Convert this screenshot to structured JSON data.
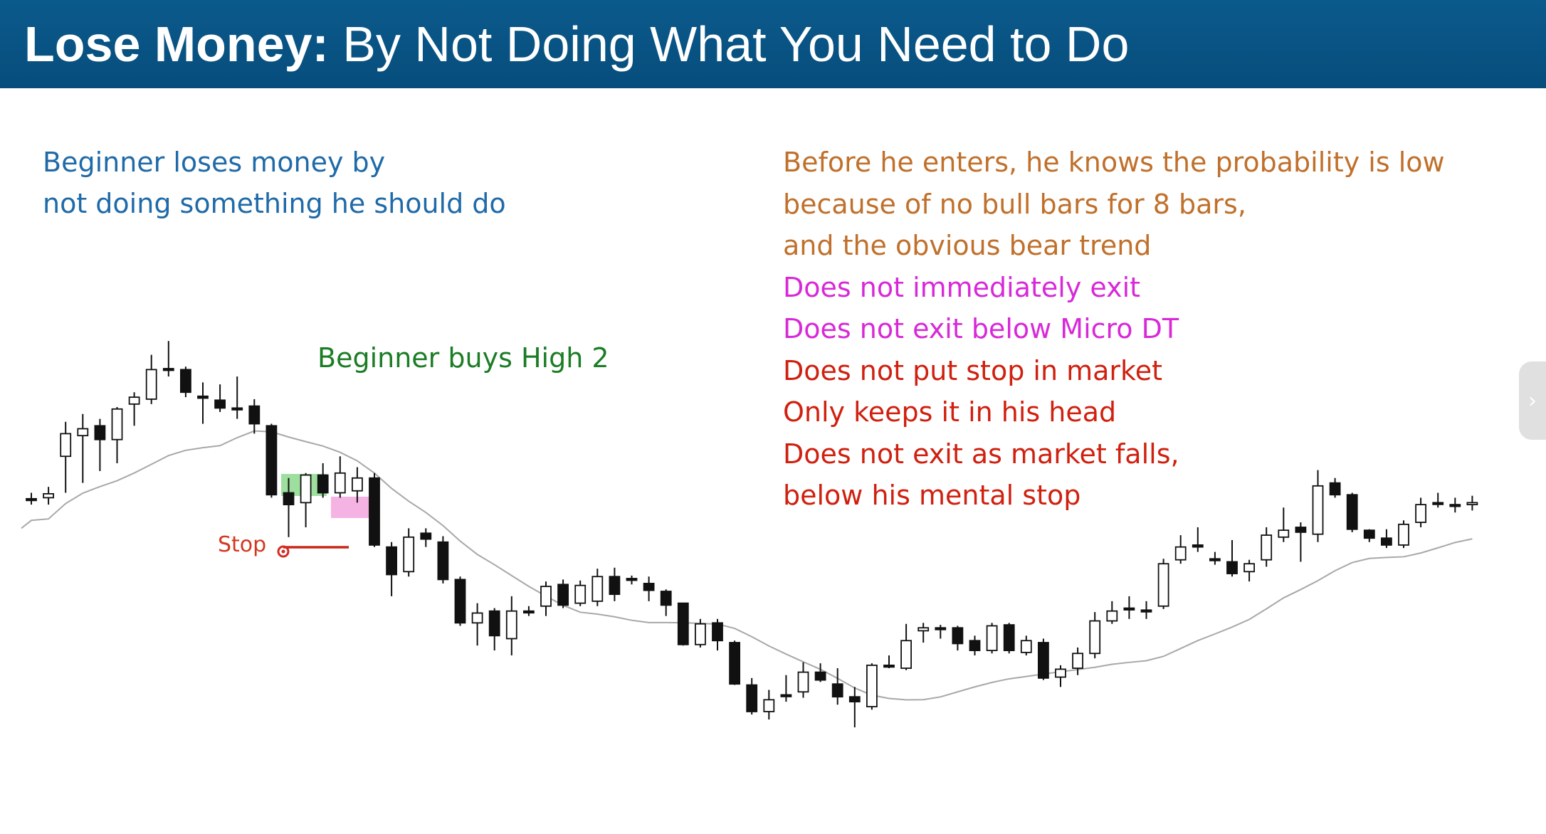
{
  "slide": {
    "title_bold": "Lose Money:",
    "title_rest": " By Not Doing What You Need to Do"
  },
  "notes": {
    "left": [
      "Beginner loses money by",
      "not doing something he should do"
    ],
    "buy": "Beginner buys High 2",
    "stop": "Stop",
    "right": [
      {
        "text": "Before he enters, he knows the probability is low",
        "color": "orange"
      },
      {
        "text": "because of no bull bars for 8 bars,",
        "color": "orange"
      },
      {
        "text": "and the obvious bear trend",
        "color": "orange"
      },
      {
        "text": "Does not immediately exit",
        "color": "magenta"
      },
      {
        "text": "Does not exit below Micro DT",
        "color": "magenta"
      },
      {
        "text": "Does not put stop in market",
        "color": "red"
      },
      {
        "text": "Only keeps it in his head",
        "color": "red"
      },
      {
        "text": "Does not exit as market falls,",
        "color": "red"
      },
      {
        "text": "below his mental stop",
        "color": "red"
      }
    ]
  },
  "colors": {
    "header_bg": "#064d7c",
    "orange": "#c0702b",
    "magenta": "#d829d8",
    "red": "#d0200f",
    "left_blue": "#1f6aa8",
    "green_text": "#1b7d25",
    "entry_highlight": "#7dd37d",
    "exit_highlight": "#f08ad4",
    "stop_line": "#c8281a",
    "moving_average": "#a8a8a8"
  },
  "side_tab_icon": "chevron-right-icon",
  "chart_data": {
    "type": "candlestick",
    "overlay": "moving average",
    "grid": false,
    "annotations": [
      "Beginner buys High 2",
      "Stop"
    ],
    "bars": [
      {
        "o": 506,
        "h": 500,
        "l": 512,
        "c": 506
      },
      {
        "o": 505,
        "h": 494,
        "l": 512,
        "c": 501
      },
      {
        "o": 463,
        "h": 428,
        "l": 500,
        "c": 440
      },
      {
        "o": 442,
        "h": 420,
        "l": 490,
        "c": 435
      },
      {
        "o": 432,
        "h": 425,
        "l": 478,
        "c": 446
      },
      {
        "o": 446,
        "h": 413,
        "l": 470,
        "c": 415
      },
      {
        "o": 410,
        "h": 398,
        "l": 432,
        "c": 403
      },
      {
        "o": 405,
        "h": 360,
        "l": 410,
        "c": 375
      },
      {
        "o": 374,
        "h": 346,
        "l": 382,
        "c": 374
      },
      {
        "o": 375,
        "h": 372,
        "l": 403,
        "c": 398
      },
      {
        "o": 402,
        "h": 388,
        "l": 430,
        "c": 404
      },
      {
        "o": 406,
        "h": 390,
        "l": 418,
        "c": 414
      },
      {
        "o": 414,
        "h": 382,
        "l": 425,
        "c": 414
      },
      {
        "o": 412,
        "h": 405,
        "l": 440,
        "c": 430
      },
      {
        "o": 432,
        "h": 430,
        "l": 505,
        "c": 502
      },
      {
        "o": 500,
        "h": 485,
        "l": 545,
        "c": 512
      },
      {
        "o": 510,
        "h": 480,
        "l": 535,
        "c": 482
      },
      {
        "o": 482,
        "h": 470,
        "l": 505,
        "c": 500
      },
      {
        "o": 500,
        "h": 463,
        "l": 505,
        "c": 480
      },
      {
        "o": 498,
        "h": 474,
        "l": 510,
        "c": 485
      },
      {
        "o": 485,
        "h": 480,
        "l": 555,
        "c": 553
      },
      {
        "o": 555,
        "h": 550,
        "l": 605,
        "c": 583
      },
      {
        "o": 580,
        "h": 536,
        "l": 585,
        "c": 545
      },
      {
        "o": 541,
        "h": 536,
        "l": 555,
        "c": 547
      },
      {
        "o": 550,
        "h": 544,
        "l": 592,
        "c": 588
      },
      {
        "o": 588,
        "h": 585,
        "l": 635,
        "c": 632
      },
      {
        "o": 632,
        "h": 612,
        "l": 655,
        "c": 622
      },
      {
        "o": 620,
        "h": 617,
        "l": 660,
        "c": 645
      },
      {
        "o": 648,
        "h": 605,
        "l": 665,
        "c": 620
      },
      {
        "o": 620,
        "h": 615,
        "l": 625,
        "c": 620
      },
      {
        "o": 615,
        "h": 590,
        "l": 625,
        "c": 595
      },
      {
        "o": 593,
        "h": 588,
        "l": 617,
        "c": 614
      },
      {
        "o": 612,
        "h": 589,
        "l": 615,
        "c": 594
      },
      {
        "o": 610,
        "h": 577,
        "l": 615,
        "c": 585
      },
      {
        "o": 585,
        "h": 576,
        "l": 610,
        "c": 603
      },
      {
        "o": 587,
        "h": 584,
        "l": 593,
        "c": 587
      },
      {
        "o": 592,
        "h": 585,
        "l": 610,
        "c": 599
      },
      {
        "o": 600,
        "h": 598,
        "l": 625,
        "c": 614
      },
      {
        "o": 612,
        "h": 612,
        "l": 655,
        "c": 654
      },
      {
        "o": 654,
        "h": 628,
        "l": 657,
        "c": 633
      },
      {
        "o": 632,
        "h": 628,
        "l": 660,
        "c": 650
      },
      {
        "o": 652,
        "h": 650,
        "l": 695,
        "c": 694
      },
      {
        "o": 695,
        "h": 688,
        "l": 725,
        "c": 722
      },
      {
        "o": 722,
        "h": 700,
        "l": 730,
        "c": 710
      },
      {
        "o": 705,
        "h": 685,
        "l": 712,
        "c": 705
      },
      {
        "o": 702,
        "h": 672,
        "l": 708,
        "c": 682
      },
      {
        "o": 682,
        "h": 673,
        "l": 692,
        "c": 690
      },
      {
        "o": 694,
        "h": 678,
        "l": 715,
        "c": 707
      },
      {
        "o": 707,
        "h": 697,
        "l": 738,
        "c": 712
      },
      {
        "o": 717,
        "h": 673,
        "l": 720,
        "c": 675
      },
      {
        "o": 675,
        "h": 665,
        "l": 678,
        "c": 675
      },
      {
        "o": 678,
        "h": 633,
        "l": 680,
        "c": 650
      },
      {
        "o": 640,
        "h": 632,
        "l": 652,
        "c": 637
      },
      {
        "o": 637,
        "h": 634,
        "l": 648,
        "c": 637
      },
      {
        "o": 637,
        "h": 635,
        "l": 660,
        "c": 653
      },
      {
        "o": 650,
        "h": 645,
        "l": 665,
        "c": 660
      },
      {
        "o": 660,
        "h": 632,
        "l": 663,
        "c": 635
      },
      {
        "o": 634,
        "h": 632,
        "l": 663,
        "c": 660
      },
      {
        "o": 662,
        "h": 645,
        "l": 665,
        "c": 650
      },
      {
        "o": 652,
        "h": 648,
        "l": 690,
        "c": 688
      },
      {
        "o": 687,
        "h": 675,
        "l": 697,
        "c": 679
      },
      {
        "o": 678,
        "h": 657,
        "l": 685,
        "c": 663
      },
      {
        "o": 663,
        "h": 621,
        "l": 668,
        "c": 630
      },
      {
        "o": 630,
        "h": 610,
        "l": 633,
        "c": 620
      },
      {
        "o": 617,
        "h": 605,
        "l": 628,
        "c": 617
      },
      {
        "o": 619,
        "h": 610,
        "l": 628,
        "c": 619
      },
      {
        "o": 615,
        "h": 567,
        "l": 618,
        "c": 572
      },
      {
        "o": 568,
        "h": 543,
        "l": 572,
        "c": 555
      },
      {
        "o": 553,
        "h": 535,
        "l": 560,
        "c": 555
      },
      {
        "o": 567,
        "h": 560,
        "l": 573,
        "c": 567
      },
      {
        "o": 570,
        "h": 548,
        "l": 585,
        "c": 582
      },
      {
        "o": 580,
        "h": 568,
        "l": 590,
        "c": 572
      },
      {
        "o": 568,
        "h": 535,
        "l": 575,
        "c": 543
      },
      {
        "o": 545,
        "h": 515,
        "l": 550,
        "c": 538
      },
      {
        "o": 535,
        "h": 530,
        "l": 570,
        "c": 540
      },
      {
        "o": 542,
        "h": 477,
        "l": 550,
        "c": 493
      },
      {
        "o": 490,
        "h": 485,
        "l": 505,
        "c": 502
      },
      {
        "o": 502,
        "h": 500,
        "l": 540,
        "c": 537
      },
      {
        "o": 538,
        "h": 537,
        "l": 550,
        "c": 546
      },
      {
        "o": 546,
        "h": 537,
        "l": 556,
        "c": 553
      },
      {
        "o": 553,
        "h": 528,
        "l": 556,
        "c": 532
      },
      {
        "o": 530,
        "h": 505,
        "l": 535,
        "c": 512
      },
      {
        "o": 510,
        "h": 500,
        "l": 515,
        "c": 510
      },
      {
        "o": 512,
        "h": 505,
        "l": 520,
        "c": 512
      },
      {
        "o": 512,
        "h": 503,
        "l": 518,
        "c": 510
      }
    ]
  }
}
